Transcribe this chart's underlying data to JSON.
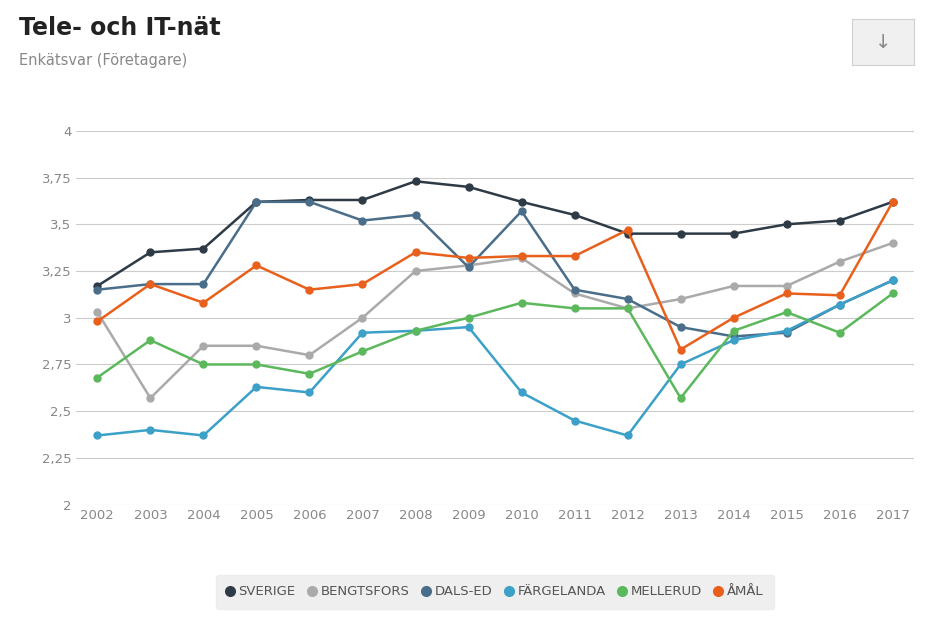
{
  "title": "Tele- och IT-nät",
  "subtitle": "Enkätsvar (Företagare)",
  "years": [
    2002,
    2003,
    2004,
    2005,
    2006,
    2007,
    2008,
    2009,
    2010,
    2011,
    2012,
    2013,
    2014,
    2015,
    2016,
    2017
  ],
  "series": {
    "SVERIGE": {
      "color": "#2e3b46",
      "values": [
        3.17,
        3.35,
        3.37,
        3.62,
        3.63,
        3.63,
        3.73,
        3.7,
        3.62,
        3.55,
        3.45,
        3.45,
        3.45,
        3.5,
        3.52,
        3.62
      ]
    },
    "BENGTSFORS": {
      "color": "#aaaaaa",
      "values": [
        3.03,
        2.57,
        2.85,
        2.85,
        2.8,
        3.0,
        3.25,
        3.28,
        3.32,
        3.13,
        3.05,
        3.1,
        3.17,
        3.17,
        3.3,
        3.4
      ]
    },
    "DALS-ED": {
      "color": "#4a6e8a",
      "values": [
        3.15,
        3.18,
        3.18,
        3.62,
        3.62,
        3.52,
        3.55,
        3.27,
        3.57,
        3.15,
        3.1,
        2.95,
        2.9,
        2.92,
        3.07,
        3.2
      ]
    },
    "FÄRGELANDA": {
      "color": "#3ca0c8",
      "values": [
        2.37,
        2.4,
        2.37,
        2.63,
        2.6,
        2.92,
        2.93,
        2.95,
        2.6,
        2.45,
        2.37,
        2.75,
        2.88,
        2.93,
        3.07,
        3.2
      ]
    },
    "MELLERUD": {
      "color": "#5cb85c",
      "values": [
        2.68,
        2.88,
        2.75,
        2.75,
        2.7,
        2.82,
        2.93,
        3.0,
        3.08,
        3.05,
        3.05,
        2.57,
        2.93,
        3.03,
        2.92,
        3.13
      ]
    },
    "ÅMÅL": {
      "color": "#e8601c",
      "values": [
        2.98,
        3.18,
        3.08,
        3.28,
        3.15,
        3.18,
        3.35,
        3.32,
        3.33,
        3.33,
        3.47,
        2.83,
        3.0,
        3.13,
        3.12,
        3.62
      ]
    }
  },
  "ylim": [
    2.0,
    4.0
  ],
  "yticks": [
    2.0,
    2.25,
    2.5,
    2.75,
    3.0,
    3.25,
    3.5,
    3.75,
    4.0
  ],
  "ytick_labels": [
    "2",
    "2,25",
    "2,5",
    "2,75",
    "3",
    "3,25",
    "3,5",
    "3,75",
    "4"
  ],
  "background_color": "#ffffff",
  "plot_bg_color": "#ffffff",
  "grid_color": "#cccccc",
  "legend_bg": "#ebebeb"
}
